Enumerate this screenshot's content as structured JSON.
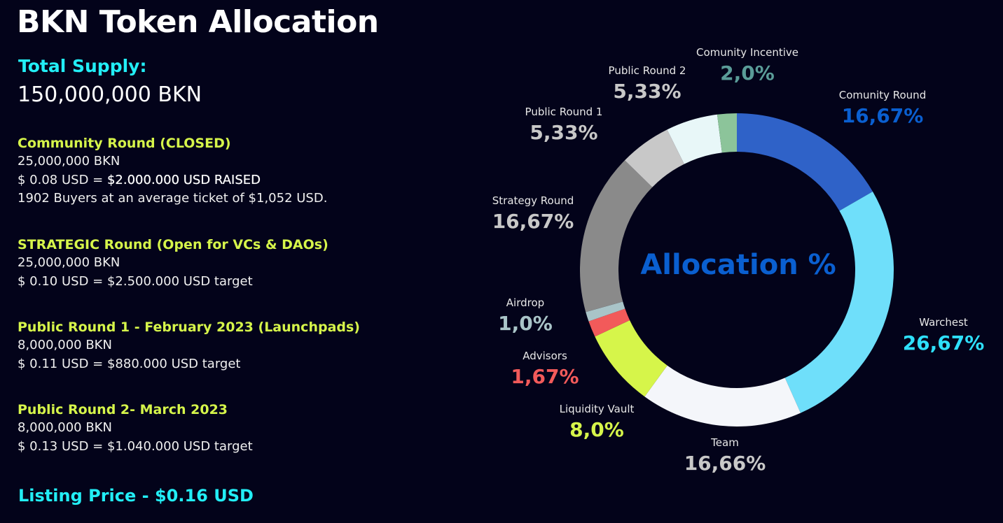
{
  "title": "BKN Token Allocation",
  "supply": {
    "label": "Total Supply:",
    "value": "150,000,000 BKN"
  },
  "rounds": [
    {
      "title": "Community Round (CLOSED)",
      "lines": [
        "25,000,000 BKN",
        "$ 0.08 USD = ",
        "1902 Buyers at an average ticket of $1,052 USD."
      ],
      "highlight": "$2.000.000 USD RAISED"
    },
    {
      "title": "STRATEGIC Round (Open for VCs & DAOs)",
      "lines": [
        "25,000,000 BKN",
        "$ 0.10 USD = $2.500.000 USD target"
      ]
    },
    {
      "title": "Public Round 1 - February 2023 (Launchpads)",
      "lines": [
        "8,000,000 BKN",
        "$ 0.11 USD = $880.000 USD target"
      ]
    },
    {
      "title": "Public Round 2- March 2023",
      "lines": [
        "8,000,000 BKN",
        "$ 0.13 USD = $1.040.000 USD target"
      ]
    }
  ],
  "listing": "Listing Price - $0.16 USD",
  "chart_data": {
    "type": "pie",
    "variant": "donut",
    "center_label": "Allocation %",
    "slices": [
      {
        "name": "Comunity Round",
        "value": 16.67,
        "label": "16,67%",
        "color": "#2f62c8",
        "label_color": "#0a5fd0"
      },
      {
        "name": "Warchest",
        "value": 26.67,
        "label": "26,67%",
        "color": "#6fdffa",
        "label_color": "#2ee0fb"
      },
      {
        "name": "Team",
        "value": 16.66,
        "label": "16,66%",
        "color": "#f4f6fa",
        "label_color": "#c8c8c8"
      },
      {
        "name": "Liquidity Vault",
        "value": 8.0,
        "label": "8,0%",
        "color": "#d6f54a",
        "label_color": "#d6f54a"
      },
      {
        "name": "Advisors",
        "value": 1.67,
        "label": "1,67%",
        "color": "#f25a5a",
        "label_color": "#f25a5a"
      },
      {
        "name": "Airdrop",
        "value": 1.0,
        "label": "1,0%",
        "color": "#a9c4c8",
        "label_color": "#a9c4c8"
      },
      {
        "name": "Strategy Round",
        "value": 16.67,
        "label": "16,67%",
        "color": "#8a8a8a",
        "label_color": "#c8c8c8"
      },
      {
        "name": "Public Round 1",
        "value": 5.33,
        "label": "5,33%",
        "color": "#c8c8c8",
        "label_color": "#c8c8c8"
      },
      {
        "name": "Public Round 2",
        "value": 5.33,
        "label": "5,33%",
        "color": "#e8f7f8",
        "label_color": "#c8c8c8"
      },
      {
        "name": "Comunity Incentive",
        "value": 2.0,
        "label": "2,0%",
        "color": "#8cc49a",
        "label_color": "#5a9c98"
      }
    ]
  }
}
